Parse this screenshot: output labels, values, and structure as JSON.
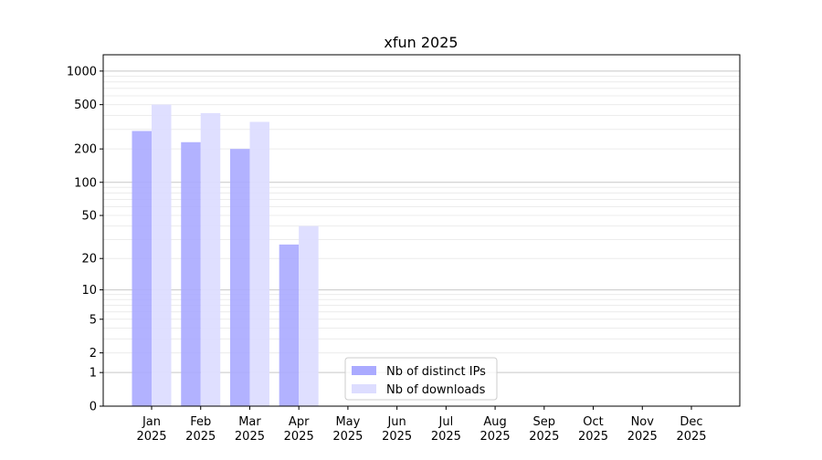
{
  "chart_data": {
    "type": "bar",
    "title": "xfun 2025",
    "xlabel": "",
    "ylabel": "",
    "yscale": "log10(1+y)",
    "ylim": [
      0,
      1400
    ],
    "yticks": [
      0,
      1,
      2,
      5,
      10,
      20,
      50,
      100,
      200,
      500,
      1000
    ],
    "ytick_labels": [
      "0",
      "1",
      "2",
      "5",
      "10",
      "20",
      "50",
      "100",
      "200",
      "500",
      "1000"
    ],
    "grid": true,
    "legend_placement": "lower-center",
    "categories": [
      "Jan\n2025",
      "Feb\n2025",
      "Mar\n2025",
      "Apr\n2025",
      "May\n2025",
      "Jun\n2025",
      "Jul\n2025",
      "Aug\n2025",
      "Sep\n2025",
      "Oct\n2025",
      "Nov\n2025",
      "Dec\n2025"
    ],
    "series": [
      {
        "name": "Nb of distinct IPs",
        "color": "#aaaaff",
        "values": [
          290,
          230,
          200,
          27,
          0,
          0,
          0,
          0,
          0,
          0,
          0,
          0
        ]
      },
      {
        "name": "Nb of downloads",
        "color": "#ddddff",
        "values": [
          500,
          420,
          350,
          40,
          0,
          0,
          0,
          0,
          0,
          0,
          0,
          0
        ]
      }
    ]
  }
}
